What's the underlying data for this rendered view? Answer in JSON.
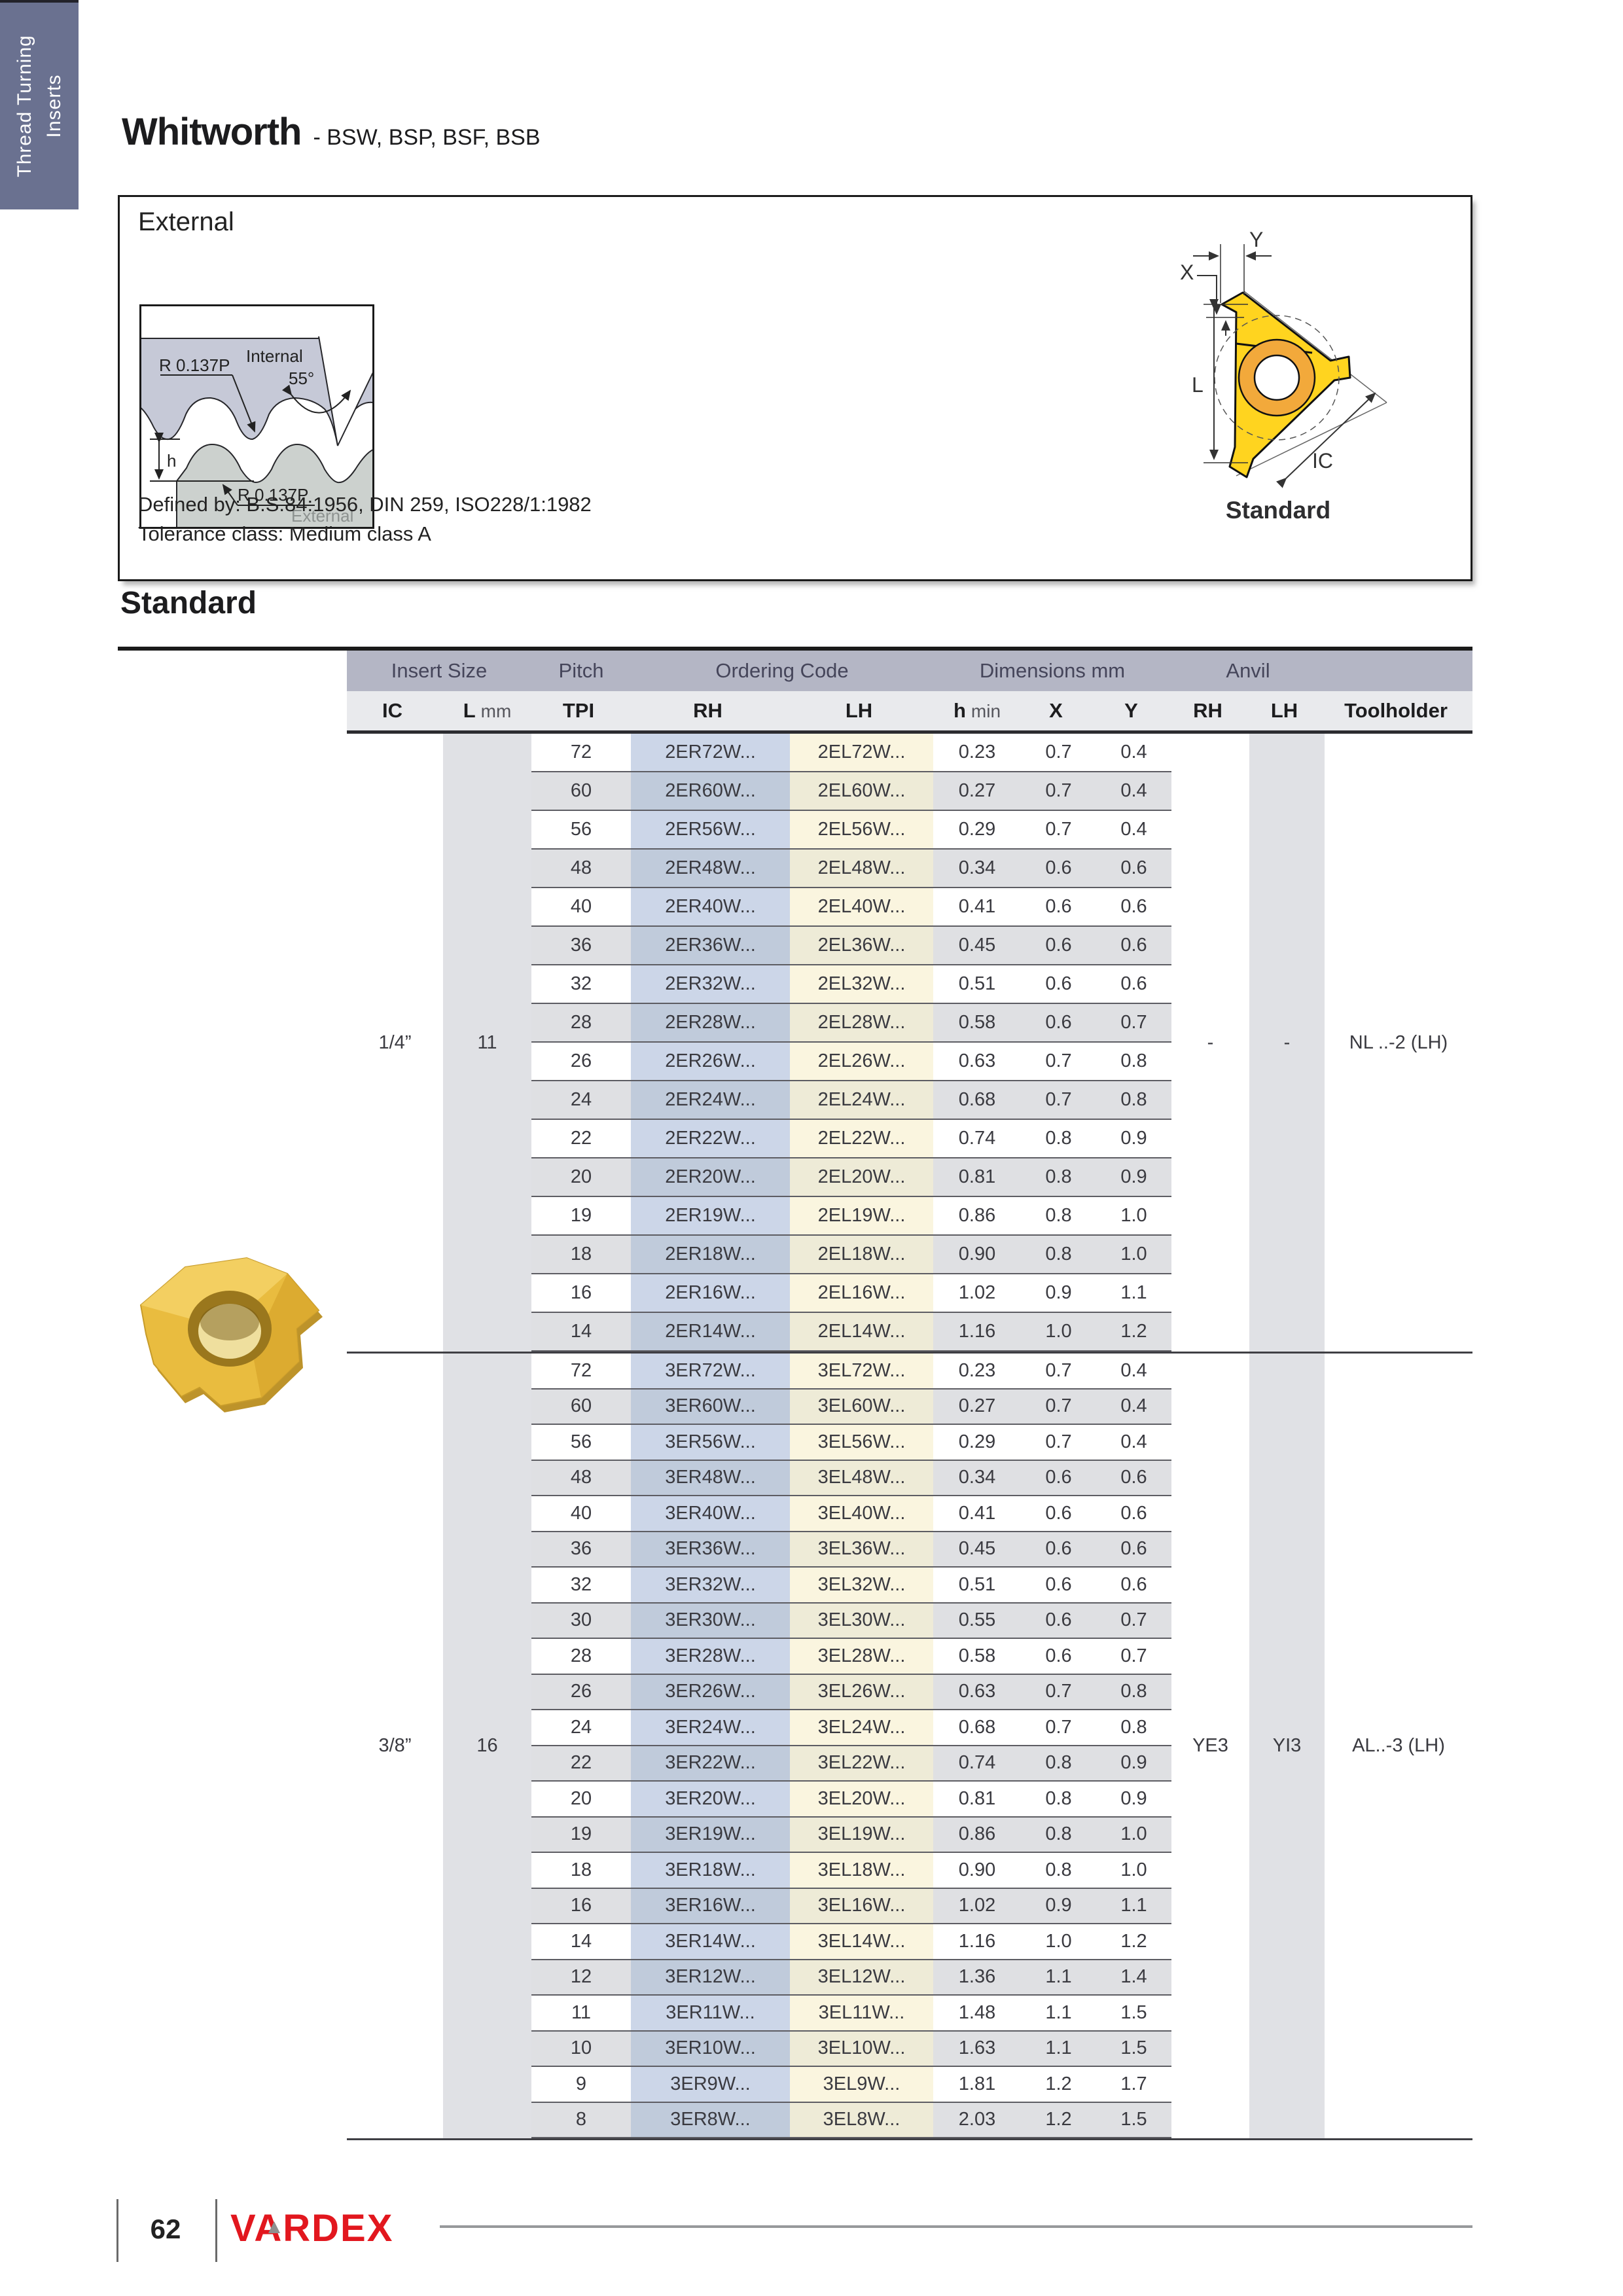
{
  "page": {
    "side_tab_line1": "Thread Turning",
    "side_tab_line2": "Inserts",
    "title": "Whitworth",
    "subtitle": "- BSW, BSP, BSF, BSB",
    "section_heading": "Standard",
    "page_number": "62",
    "brand": "VARDEX"
  },
  "external_panel": {
    "heading": "External",
    "defined_by": "Defined by: B.S.84:1956, DIN 259, ISO228/1:1982",
    "tolerance": "Tolerance class: Medium class A",
    "profile_diagram": {
      "r_top": "R 0.137P",
      "internal": "Internal",
      "angle": "55°",
      "h": "h",
      "r_bottom": "R 0.137P",
      "external": "External"
    },
    "insert_diagram": {
      "x": "X",
      "y": "Y",
      "l": "L",
      "ic": "IC",
      "caption": "Standard"
    }
  },
  "table": {
    "group_headers": [
      "Insert Size",
      "Pitch",
      "Ordering Code",
      "Dimensions mm",
      "Anvil",
      ""
    ],
    "columns": [
      {
        "label": "IC"
      },
      {
        "label": "L",
        "unit": "mm"
      },
      {
        "label": "TPI"
      },
      {
        "label": "RH"
      },
      {
        "label": "LH"
      },
      {
        "label": "h",
        "unit": "min"
      },
      {
        "label": "X"
      },
      {
        "label": "Y"
      },
      {
        "label": "RH"
      },
      {
        "label": "LH"
      },
      {
        "label": "Toolholder"
      }
    ],
    "groups": [
      {
        "ic": "1/4”",
        "l_mm": "11",
        "anvil_rh": "-",
        "anvil_lh": "-",
        "toolholder": "NL ..-2 (LH)",
        "rows": [
          {
            "tpi": "72",
            "rh": "2ER72W...",
            "lh": "2EL72W...",
            "h_min": "0.23",
            "x": "0.7",
            "y": "0.4"
          },
          {
            "tpi": "60",
            "rh": "2ER60W...",
            "lh": "2EL60W...",
            "h_min": "0.27",
            "x": "0.7",
            "y": "0.4"
          },
          {
            "tpi": "56",
            "rh": "2ER56W...",
            "lh": "2EL56W...",
            "h_min": "0.29",
            "x": "0.7",
            "y": "0.4"
          },
          {
            "tpi": "48",
            "rh": "2ER48W...",
            "lh": "2EL48W...",
            "h_min": "0.34",
            "x": "0.6",
            "y": "0.6"
          },
          {
            "tpi": "40",
            "rh": "2ER40W...",
            "lh": "2EL40W...",
            "h_min": "0.41",
            "x": "0.6",
            "y": "0.6"
          },
          {
            "tpi": "36",
            "rh": "2ER36W...",
            "lh": "2EL36W...",
            "h_min": "0.45",
            "x": "0.6",
            "y": "0.6"
          },
          {
            "tpi": "32",
            "rh": "2ER32W...",
            "lh": "2EL32W...",
            "h_min": "0.51",
            "x": "0.6",
            "y": "0.6"
          },
          {
            "tpi": "28",
            "rh": "2ER28W...",
            "lh": "2EL28W...",
            "h_min": "0.58",
            "x": "0.6",
            "y": "0.7"
          },
          {
            "tpi": "26",
            "rh": "2ER26W...",
            "lh": "2EL26W...",
            "h_min": "0.63",
            "x": "0.7",
            "y": "0.8"
          },
          {
            "tpi": "24",
            "rh": "2ER24W...",
            "lh": "2EL24W...",
            "h_min": "0.68",
            "x": "0.7",
            "y": "0.8"
          },
          {
            "tpi": "22",
            "rh": "2ER22W...",
            "lh": "2EL22W...",
            "h_min": "0.74",
            "x": "0.8",
            "y": "0.9"
          },
          {
            "tpi": "20",
            "rh": "2ER20W...",
            "lh": "2EL20W...",
            "h_min": "0.81",
            "x": "0.8",
            "y": "0.9"
          },
          {
            "tpi": "19",
            "rh": "2ER19W...",
            "lh": "2EL19W...",
            "h_min": "0.86",
            "x": "0.8",
            "y": "1.0"
          },
          {
            "tpi": "18",
            "rh": "2ER18W...",
            "lh": "2EL18W...",
            "h_min": "0.90",
            "x": "0.8",
            "y": "1.0"
          },
          {
            "tpi": "16",
            "rh": "2ER16W...",
            "lh": "2EL16W...",
            "h_min": "1.02",
            "x": "0.9",
            "y": "1.1"
          },
          {
            "tpi": "14",
            "rh": "2ER14W...",
            "lh": "2EL14W...",
            "h_min": "1.16",
            "x": "1.0",
            "y": "1.2"
          }
        ]
      },
      {
        "ic": "3/8”",
        "l_mm": "16",
        "anvil_rh": "YE3",
        "anvil_lh": "YI3",
        "toolholder": "AL..-3 (LH)",
        "rows": [
          {
            "tpi": "72",
            "rh": "3ER72W...",
            "lh": "3EL72W...",
            "h_min": "0.23",
            "x": "0.7",
            "y": "0.4"
          },
          {
            "tpi": "60",
            "rh": "3ER60W...",
            "lh": "3EL60W...",
            "h_min": "0.27",
            "x": "0.7",
            "y": "0.4"
          },
          {
            "tpi": "56",
            "rh": "3ER56W...",
            "lh": "3EL56W...",
            "h_min": "0.29",
            "x": "0.7",
            "y": "0.4"
          },
          {
            "tpi": "48",
            "rh": "3ER48W...",
            "lh": "3EL48W...",
            "h_min": "0.34",
            "x": "0.6",
            "y": "0.6"
          },
          {
            "tpi": "40",
            "rh": "3ER40W...",
            "lh": "3EL40W...",
            "h_min": "0.41",
            "x": "0.6",
            "y": "0.6"
          },
          {
            "tpi": "36",
            "rh": "3ER36W...",
            "lh": "3EL36W...",
            "h_min": "0.45",
            "x": "0.6",
            "y": "0.6"
          },
          {
            "tpi": "32",
            "rh": "3ER32W...",
            "lh": "3EL32W...",
            "h_min": "0.51",
            "x": "0.6",
            "y": "0.6"
          },
          {
            "tpi": "30",
            "rh": "3ER30W...",
            "lh": "3EL30W...",
            "h_min": "0.55",
            "x": "0.6",
            "y": "0.7"
          },
          {
            "tpi": "28",
            "rh": "3ER28W...",
            "lh": "3EL28W...",
            "h_min": "0.58",
            "x": "0.6",
            "y": "0.7"
          },
          {
            "tpi": "26",
            "rh": "3ER26W...",
            "lh": "3EL26W...",
            "h_min": "0.63",
            "x": "0.7",
            "y": "0.8"
          },
          {
            "tpi": "24",
            "rh": "3ER24W...",
            "lh": "3EL24W...",
            "h_min": "0.68",
            "x": "0.7",
            "y": "0.8"
          },
          {
            "tpi": "22",
            "rh": "3ER22W...",
            "lh": "3EL22W...",
            "h_min": "0.74",
            "x": "0.8",
            "y": "0.9"
          },
          {
            "tpi": "20",
            "rh": "3ER20W...",
            "lh": "3EL20W...",
            "h_min": "0.81",
            "x": "0.8",
            "y": "0.9"
          },
          {
            "tpi": "19",
            "rh": "3ER19W...",
            "lh": "3EL19W...",
            "h_min": "0.86",
            "x": "0.8",
            "y": "1.0"
          },
          {
            "tpi": "18",
            "rh": "3ER18W...",
            "lh": "3EL18W...",
            "h_min": "0.90",
            "x": "0.8",
            "y": "1.0"
          },
          {
            "tpi": "16",
            "rh": "3ER16W...",
            "lh": "3EL16W...",
            "h_min": "1.02",
            "x": "0.9",
            "y": "1.1"
          },
          {
            "tpi": "14",
            "rh": "3ER14W...",
            "lh": "3EL14W...",
            "h_min": "1.16",
            "x": "1.0",
            "y": "1.2"
          },
          {
            "tpi": "12",
            "rh": "3ER12W...",
            "lh": "3EL12W...",
            "h_min": "1.36",
            "x": "1.1",
            "y": "1.4"
          },
          {
            "tpi": "11",
            "rh": "3ER11W...",
            "lh": "3EL11W...",
            "h_min": "1.48",
            "x": "1.1",
            "y": "1.5"
          },
          {
            "tpi": "10",
            "rh": "3ER10W...",
            "lh": "3EL10W...",
            "h_min": "1.63",
            "x": "1.1",
            "y": "1.5"
          },
          {
            "tpi": "9",
            "rh": "3ER9W...",
            "lh": "3EL9W...",
            "h_min": "1.81",
            "x": "1.2",
            "y": "1.7"
          },
          {
            "tpi": "8",
            "rh": "3ER8W...",
            "lh": "3EL8W...",
            "h_min": "2.03",
            "x": "1.2",
            "y": "1.5"
          }
        ]
      }
    ]
  },
  "colors": {
    "tab": "#6a7190",
    "band1": "#b4b6c5",
    "band2": "#e9eaed",
    "row_grey": "#dfe0e3",
    "rh_blue": "#ccd6e8",
    "lh_cream": "#faf5df",
    "insert_yellow": "#ffd41f",
    "insert_orange": "#f2a93b",
    "brand_red": "#e2171e"
  }
}
